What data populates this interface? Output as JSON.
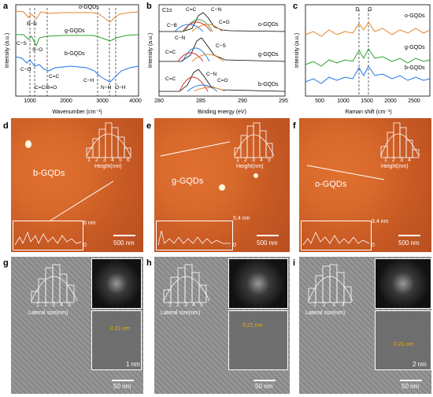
{
  "panel_letters": [
    "a",
    "b",
    "c",
    "d",
    "e",
    "f",
    "g",
    "h",
    "i"
  ],
  "panel_a": {
    "xlabel": "Wavenumber (cm⁻¹)",
    "ylabel": "Intensity (a.u.)",
    "xticks": [
      "1000",
      "2000",
      "3000",
      "4000"
    ],
    "series": [
      "o-GQDs",
      "g-GQDs",
      "b-GQDs"
    ],
    "annotations": [
      "B−N",
      "C−S",
      "S−O",
      "C−O",
      "C=C",
      "C=C/B=O",
      "N−H",
      "C−H",
      "O−H"
    ]
  },
  "panel_b": {
    "xlabel": "Binding energy (eV)",
    "ylabel": "Intensity (a.u.)",
    "xticks": [
      "280",
      "285",
      "290",
      "295"
    ],
    "title": "C1s",
    "series": [
      "o-GQDs",
      "g-GQDs",
      "b-GQDs"
    ],
    "annotations": [
      "C−B",
      "C=C",
      "C−N",
      "C=O",
      "C−N",
      "C−S",
      "C=C",
      "C=C",
      "C−N",
      "C=O"
    ]
  },
  "panel_c": {
    "xlabel": "Raman shift (cm⁻¹)",
    "ylabel": "Intensity (a.u.)",
    "xticks": [
      "500",
      "1000",
      "1500",
      "2000",
      "2500"
    ],
    "peaks": [
      "D",
      "G"
    ],
    "series": [
      "o-GQDs",
      "g-GQDs",
      "b-GQDs"
    ]
  },
  "colors": {
    "orange": "#e8822a",
    "green": "#2ca02c",
    "blue": "#1f77e4",
    "red": "#d62728",
    "yellow": "#e8b000"
  },
  "afm": [
    {
      "label": "b-GQDs",
      "hist_label": "Height(nm)",
      "hist_ticks": [
        "1",
        "2",
        "3",
        "4",
        "5",
        "6"
      ],
      "profile_max": "6 nm",
      "profile_min": "0",
      "scale": "500 nm"
    },
    {
      "label": "g-GQDs",
      "hist_label": "Height(nm)",
      "hist_ticks": [
        "1",
        "2",
        "3",
        "4",
        "5"
      ],
      "profile_max": "5.4 nm",
      "profile_min": "0",
      "scale": "500 nm"
    },
    {
      "label": "o-GQDs",
      "hist_label": "Height(nm)",
      "hist_ticks": [
        "1",
        "2",
        "3",
        "4"
      ],
      "profile_max": "3.4 nm",
      "profile_min": "0",
      "scale": "500 nm"
    }
  ],
  "tem": [
    {
      "hist_label": "Lateral size(nm)",
      "hist_ticks": [
        "1",
        "2",
        "3",
        "4",
        "5"
      ],
      "lattice": "0.21 nm",
      "inset_scale": "1 nm",
      "scale": "50 nm"
    },
    {
      "hist_label": "Lateral size(nm)",
      "hist_ticks": [
        "1",
        "2",
        "3",
        "4",
        "5"
      ],
      "lattice": "0.21 nm",
      "inset_scale": "",
      "scale": "50 nm"
    },
    {
      "hist_label": "Lateral size(nm)",
      "hist_ticks": [
        "1",
        "2",
        "3",
        "4"
      ],
      "lattice": "0.21 nm",
      "inset_scale": "2 nm",
      "scale": "50 nm"
    }
  ]
}
